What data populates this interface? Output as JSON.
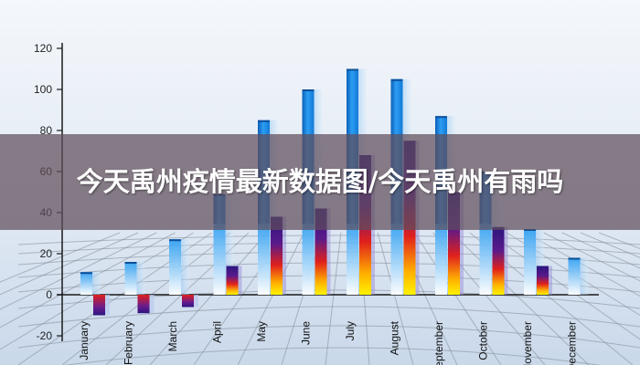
{
  "banner": {
    "title": "今天禹州疫情最新数据图/今天禹州有雨吗"
  },
  "chart_data": {
    "type": "bar",
    "title": "",
    "xlabel": "",
    "ylabel": "",
    "ylim": [
      -20,
      120
    ],
    "yticks": [
      -20,
      0,
      20,
      40,
      60,
      80,
      100,
      120
    ],
    "grid": "3d floor grid",
    "categories": [
      "January",
      "February",
      "March",
      "April",
      "May",
      "June",
      "July",
      "August",
      "September",
      "October",
      "November",
      "December"
    ],
    "series": [
      {
        "color": "#1e88e5",
        "values": [
          11,
          16,
          27,
          49,
          85,
          100,
          110,
          105,
          87,
          60,
          32,
          18
        ]
      },
      {
        "color": "#3a1a9a",
        "values": [
          -10,
          -9,
          -6,
          14,
          38,
          42,
          68,
          75,
          50,
          33,
          14,
          0
        ]
      }
    ]
  }
}
